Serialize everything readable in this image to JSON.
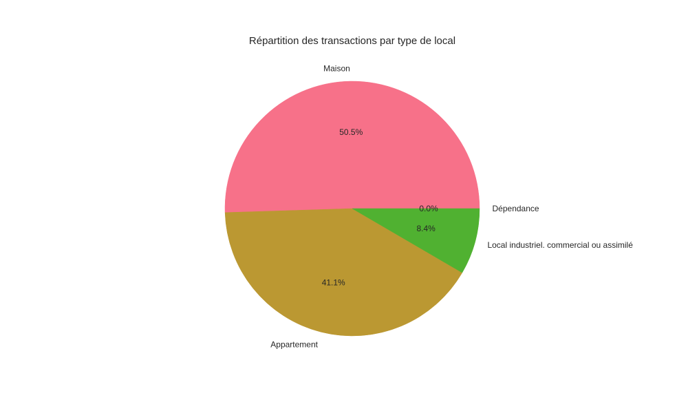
{
  "chart_data": {
    "type": "pie",
    "title": "Répartition des transactions par type de local",
    "slices": [
      {
        "label": "Dépendance",
        "value": 0.0,
        "pct_label": "0.0%",
        "color": "#f77189"
      },
      {
        "label": "Maison",
        "value": 50.5,
        "pct_label": "50.5%",
        "color": "#f77189"
      },
      {
        "label": "Appartement",
        "value": 41.1,
        "pct_label": "41.1%",
        "color": "#bb9832"
      },
      {
        "label": "Local industriel. commercial ou assimilé",
        "value": 8.4,
        "pct_label": "8.4%",
        "color": "#50b131"
      }
    ]
  }
}
